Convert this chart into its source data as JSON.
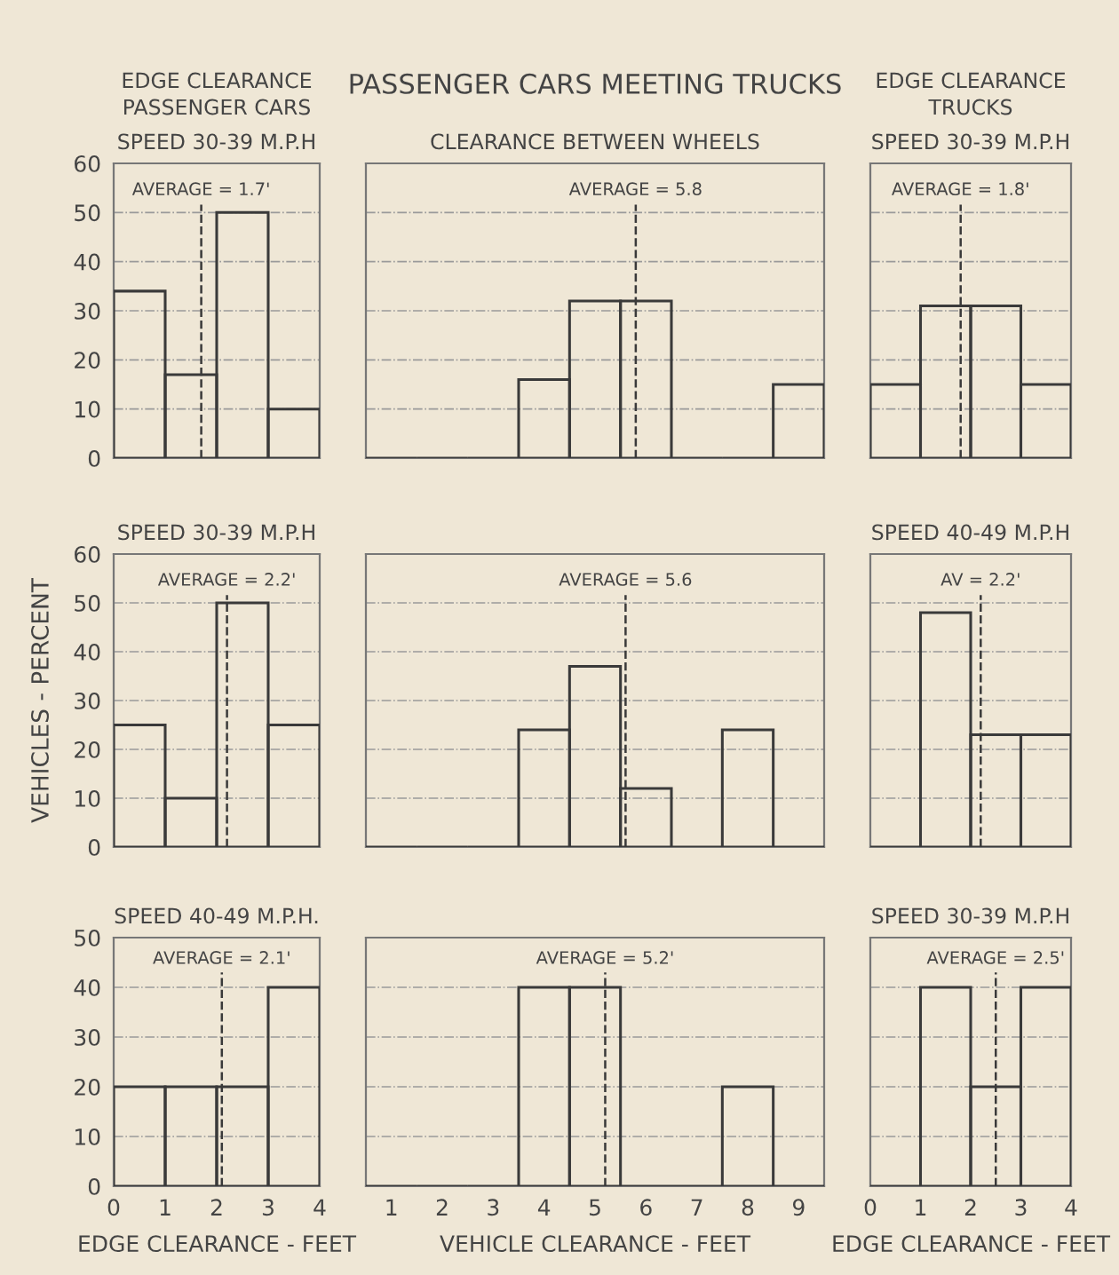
{
  "chart_data": [
    {
      "type": "histogram",
      "title": "EDGE CLEARANCE\nPASSENGER CARS",
      "subtitle": "SPEED 30-39 M.P.H",
      "bins": [
        0,
        1,
        2,
        3,
        4
      ],
      "values": [
        34,
        17,
        50,
        10
      ],
      "color": "#3a3a3a",
      "xlim": [
        0,
        4
      ],
      "ylim": [
        0,
        60
      ],
      "yticks": [
        0,
        10,
        20,
        30,
        40,
        50,
        60
      ],
      "grid": "y",
      "tick_labels": "y",
      "ref_lines": [
        {
          "axis": "x",
          "value": 1.7,
          "label": "AVERAGE = 1.7'",
          "line_style": "dashed",
          "color": "#3a3a3a"
        }
      ]
    },
    {
      "type": "histogram",
      "title": "PASSENGER CARS MEETING TRUCKS",
      "subtitle": "CLEARANCE BETWEEN WHEELS",
      "bins": [
        0.5,
        1.5,
        2.5,
        3.5,
        4.5,
        5.5,
        6.5,
        7.5,
        8.5,
        9.5
      ],
      "values": [
        0,
        0,
        0,
        16,
        32,
        32,
        0,
        0,
        15
      ],
      "color": "#3a3a3a",
      "xlim": [
        0.5,
        9.5
      ],
      "ylim": [
        0,
        60
      ],
      "yticks": [
        0,
        10,
        20,
        30,
        40,
        50,
        60
      ],
      "grid": "y",
      "tick_labels": false,
      "ref_lines": [
        {
          "axis": "x",
          "value": 5.8,
          "label": "AVERAGE = 5.8",
          "line_style": "dashed",
          "color": "#3a3a3a"
        }
      ]
    },
    {
      "type": "histogram",
      "title": "EDGE CLEARANCE\nTRUCKS",
      "subtitle": "SPEED 30-39 M.P.H",
      "bins": [
        0,
        1,
        2,
        3,
        4
      ],
      "values": [
        15,
        31,
        31,
        15
      ],
      "color": "#3a3a3a",
      "xlim": [
        0,
        4
      ],
      "ylim": [
        0,
        60
      ],
      "yticks": [
        0,
        10,
        20,
        30,
        40,
        50,
        60
      ],
      "grid": "y",
      "tick_labels": false,
      "ref_lines": [
        {
          "axis": "x",
          "value": 1.8,
          "label": "AVERAGE = 1.8'",
          "line_style": "dashed",
          "color": "#3a3a3a"
        }
      ]
    },
    {
      "type": "histogram",
      "title": "SPEED 30-39 M.P.H",
      "ylabel": "VEHICLES - PERCENT",
      "bins": [
        0,
        1,
        2,
        3,
        4
      ],
      "values": [
        25,
        10,
        50,
        25
      ],
      "color": "#3a3a3a",
      "xlim": [
        0,
        4
      ],
      "ylim": [
        0,
        60
      ],
      "yticks": [
        0,
        10,
        20,
        30,
        40,
        50,
        60
      ],
      "grid": "y",
      "tick_labels": "y",
      "ref_lines": [
        {
          "axis": "x",
          "value": 2.2,
          "label": "AVERAGE = 2.2'",
          "line_style": "dashed",
          "color": "#3a3a3a"
        }
      ]
    },
    {
      "type": "histogram",
      "bins": [
        0.5,
        1.5,
        2.5,
        3.5,
        4.5,
        5.5,
        6.5,
        7.5,
        8.5,
        9.5
      ],
      "values": [
        0,
        0,
        0,
        24,
        37,
        12,
        0,
        24,
        0
      ],
      "color": "#3a3a3a",
      "xlim": [
        0.5,
        9.5
      ],
      "ylim": [
        0,
        60
      ],
      "yticks": [
        0,
        10,
        20,
        30,
        40,
        50,
        60
      ],
      "grid": "y",
      "tick_labels": false,
      "ref_lines": [
        {
          "axis": "x",
          "value": 5.6,
          "label": "AVERAGE = 5.6",
          "line_style": "dashed",
          "color": "#3a3a3a"
        }
      ]
    },
    {
      "type": "histogram",
      "title": "SPEED 40-49 M.P.H",
      "bins": [
        0,
        1,
        2,
        3,
        4
      ],
      "values": [
        0,
        48,
        23,
        23
      ],
      "color": "#3a3a3a",
      "xlim": [
        0,
        4
      ],
      "ylim": [
        0,
        60
      ],
      "yticks": [
        0,
        10,
        20,
        30,
        40,
        50,
        60
      ],
      "grid": "y",
      "tick_labels": false,
      "ref_lines": [
        {
          "axis": "x",
          "value": 2.2,
          "label": "AV = 2.2'",
          "line_style": "dashed",
          "color": "#3a3a3a"
        }
      ]
    },
    {
      "type": "histogram",
      "title": "SPEED 40-49 M.P.H.",
      "xlabel": "EDGE CLEARANCE - FEET",
      "bins": [
        0,
        1,
        2,
        3,
        4
      ],
      "values": [
        20,
        20,
        20,
        40
      ],
      "color": "#3a3a3a",
      "xlim": [
        0,
        4
      ],
      "xticks": [
        0,
        1,
        2,
        3,
        4
      ],
      "ylim": [
        0,
        50
      ],
      "yticks": [
        0,
        10,
        20,
        30,
        40,
        50
      ],
      "grid": "y",
      "ref_lines": [
        {
          "axis": "x",
          "value": 2.1,
          "label": "AVERAGE = 2.1'",
          "line_style": "dashed",
          "color": "#3a3a3a"
        }
      ]
    },
    {
      "type": "histogram",
      "xlabel": "VEHICLE CLEARANCE - FEET",
      "bins": [
        0.5,
        1.5,
        2.5,
        3.5,
        4.5,
        5.5,
        6.5,
        7.5,
        8.5,
        9.5
      ],
      "values": [
        0,
        0,
        0,
        40,
        40,
        0,
        0,
        20,
        0
      ],
      "color": "#3a3a3a",
      "xlim": [
        0.5,
        9.5
      ],
      "xticks": [
        1,
        2,
        3,
        4,
        5,
        6,
        7,
        8,
        9
      ],
      "ylim": [
        0,
        50
      ],
      "yticks": [
        0,
        10,
        20,
        30,
        40,
        50
      ],
      "grid": "y",
      "tick_labels": "x",
      "ref_lines": [
        {
          "axis": "x",
          "value": 5.2,
          "label": "AVERAGE = 5.2'",
          "line_style": "dashed",
          "color": "#3a3a3a"
        }
      ]
    },
    {
      "type": "histogram",
      "title": "SPEED 30-39 M.P.H",
      "xlabel": "EDGE CLEARANCE - FEET",
      "bins": [
        0,
        1,
        2,
        3,
        4
      ],
      "values": [
        0,
        40,
        20,
        40
      ],
      "color": "#3a3a3a",
      "xlim": [
        0,
        4
      ],
      "xticks": [
        0,
        1,
        2,
        3,
        4
      ],
      "ylim": [
        0,
        50
      ],
      "yticks": [
        0,
        10,
        20,
        30,
        40,
        50
      ],
      "grid": "y",
      "tick_labels": "x",
      "ref_lines": [
        {
          "axis": "x",
          "value": 2.5,
          "label": "AVERAGE = 2.5'",
          "line_style": "dashed",
          "color": "#3a3a3a"
        }
      ]
    }
  ]
}
